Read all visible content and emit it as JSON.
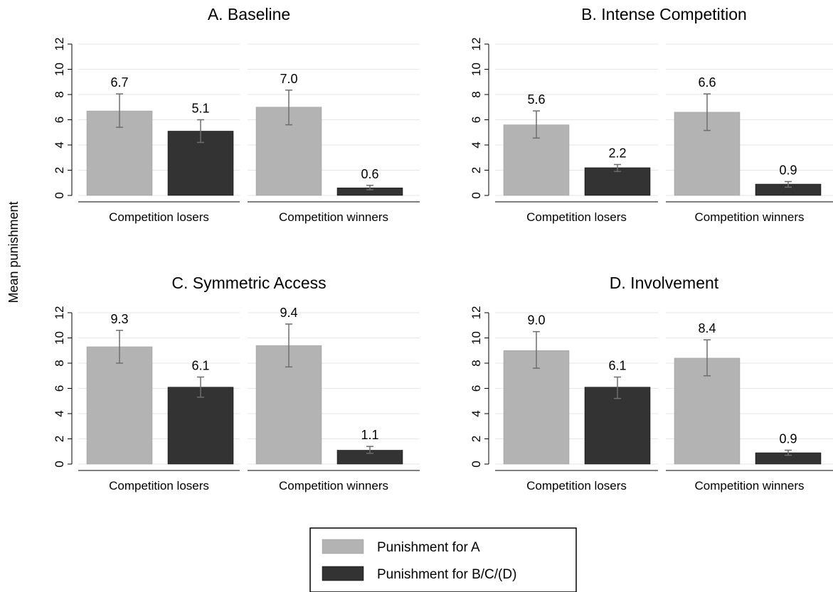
{
  "chart_data": {
    "type": "bar",
    "ylabel": "Mean punishment",
    "ylim": [
      0,
      12
    ],
    "yticks": [
      0,
      2,
      4,
      6,
      8,
      10,
      12
    ],
    "grid": true,
    "legend_position": "bottom-center",
    "series": [
      {
        "name": "Punishment for A",
        "color": "#b3b3b3"
      },
      {
        "name": "Punishment for B/C/(D)",
        "color": "#333333"
      }
    ],
    "panels": [
      {
        "title": "A. Baseline",
        "groups": [
          {
            "label": "Competition losers",
            "values": [
              6.7,
              5.1
            ],
            "value_labels": [
              "6.7",
              "5.1"
            ],
            "ci_low": [
              5.4,
              4.2
            ],
            "ci_high": [
              8.05,
              6.0
            ]
          },
          {
            "label": "Competition winners",
            "values": [
              7.0,
              0.6
            ],
            "value_labels": [
              "7.0",
              "0.6"
            ],
            "ci_low": [
              5.6,
              0.45
            ],
            "ci_high": [
              8.35,
              0.8
            ]
          }
        ]
      },
      {
        "title": "B. Intense Competition",
        "groups": [
          {
            "label": "Competition losers",
            "values": [
              5.6,
              2.2
            ],
            "value_labels": [
              "5.6",
              "2.2"
            ],
            "ci_low": [
              4.55,
              1.9
            ],
            "ci_high": [
              6.7,
              2.45
            ]
          },
          {
            "label": "Competition winners",
            "values": [
              6.6,
              0.9
            ],
            "value_labels": [
              "6.6",
              "0.9"
            ],
            "ci_low": [
              5.15,
              0.65
            ],
            "ci_high": [
              8.05,
              1.1
            ]
          }
        ]
      },
      {
        "title": "C. Symmetric Access",
        "groups": [
          {
            "label": "Competition losers",
            "values": [
              9.3,
              6.1
            ],
            "value_labels": [
              "9.3",
              "6.1"
            ],
            "ci_low": [
              8.0,
              5.3
            ],
            "ci_high": [
              10.6,
              6.9
            ]
          },
          {
            "label": "Competition winners",
            "values": [
              9.4,
              1.1
            ],
            "value_labels": [
              "9.4",
              "1.1"
            ],
            "ci_low": [
              7.7,
              0.85
            ],
            "ci_high": [
              11.1,
              1.4
            ]
          }
        ]
      },
      {
        "title": "D. Involvement",
        "groups": [
          {
            "label": "Competition losers",
            "values": [
              9.0,
              6.1
            ],
            "value_labels": [
              "9.0",
              "6.1"
            ],
            "ci_low": [
              7.6,
              5.2
            ],
            "ci_high": [
              10.5,
              6.9
            ]
          },
          {
            "label": "Competition winners",
            "values": [
              8.4,
              0.9
            ],
            "value_labels": [
              "8.4",
              "0.9"
            ],
            "ci_low": [
              7.0,
              0.7
            ],
            "ci_high": [
              9.85,
              1.1
            ]
          }
        ]
      }
    ]
  }
}
